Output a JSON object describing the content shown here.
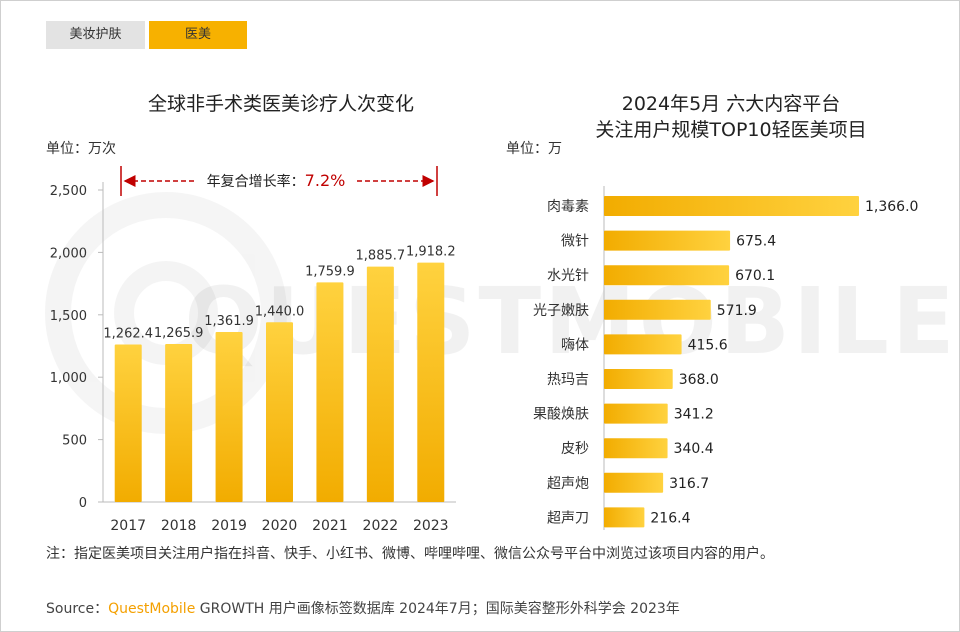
{
  "tabs": [
    {
      "label": "美妆护肤",
      "active": false
    },
    {
      "label": "医美",
      "active": true
    }
  ],
  "watermark": "QUESTMOBILE",
  "left_chart": {
    "title": "全球非手术类医美诊疗人次变化",
    "unit": "单位：万次",
    "cagr_label": "年复合增长率：",
    "cagr_value": "7.2%"
  },
  "right_chart": {
    "title_line1": "2024年5月 六大内容平台",
    "title_line2": "关注用户规模TOP10轻医美项目",
    "unit": "单位：万"
  },
  "footnote": "注：指定医美项目关注用户指在抖音、快手、小红书、微博、哔哩哔哩、微信公众号平台中浏览过该项目内容的用户。",
  "source": {
    "prefix": "Source：",
    "brand": "QuestMobile",
    "rest": " GROWTH 用户画像标签数据库 2024年7月；国际美容整形外科学会 2023年"
  },
  "colors": {
    "bar": "#f7b500",
    "bar_light": "#ffd23f",
    "accent": "#c00000",
    "tab_active": "#f7b100"
  },
  "chart_data": [
    {
      "type": "bar",
      "categories": [
        "2017",
        "2018",
        "2019",
        "2020",
        "2021",
        "2022",
        "2023"
      ],
      "values": [
        1262.4,
        1265.9,
        1361.9,
        1440.0,
        1759.9,
        1885.7,
        1918.2
      ],
      "value_labels": [
        "1,262.4",
        "1,265.9",
        "1,361.9",
        "1,440.0",
        "1,759.9",
        "1,885.7",
        "1,918.2"
      ],
      "yticks": [
        "0",
        "500",
        "1,000",
        "1,500",
        "2,000",
        "2,500"
      ],
      "ytick_values": [
        0,
        500,
        1000,
        1500,
        2000,
        2500
      ],
      "ylim": [
        0,
        2500
      ]
    },
    {
      "type": "bar",
      "orientation": "horizontal",
      "categories": [
        "肉毒素",
        "微针",
        "水光针",
        "光子嫩肤",
        "嗨体",
        "热玛吉",
        "果酸焕肤",
        "皮秒",
        "超声炮",
        "超声刀"
      ],
      "values": [
        1366.0,
        675.4,
        670.1,
        571.9,
        415.6,
        368.0,
        341.2,
        340.4,
        316.7,
        216.4
      ],
      "value_labels": [
        "1,366.0",
        "675.4",
        "670.1",
        "571.9",
        "415.6",
        "368.0",
        "341.2",
        "340.4",
        "316.7",
        "216.4"
      ],
      "xlim": [
        0,
        1366.0
      ]
    }
  ]
}
